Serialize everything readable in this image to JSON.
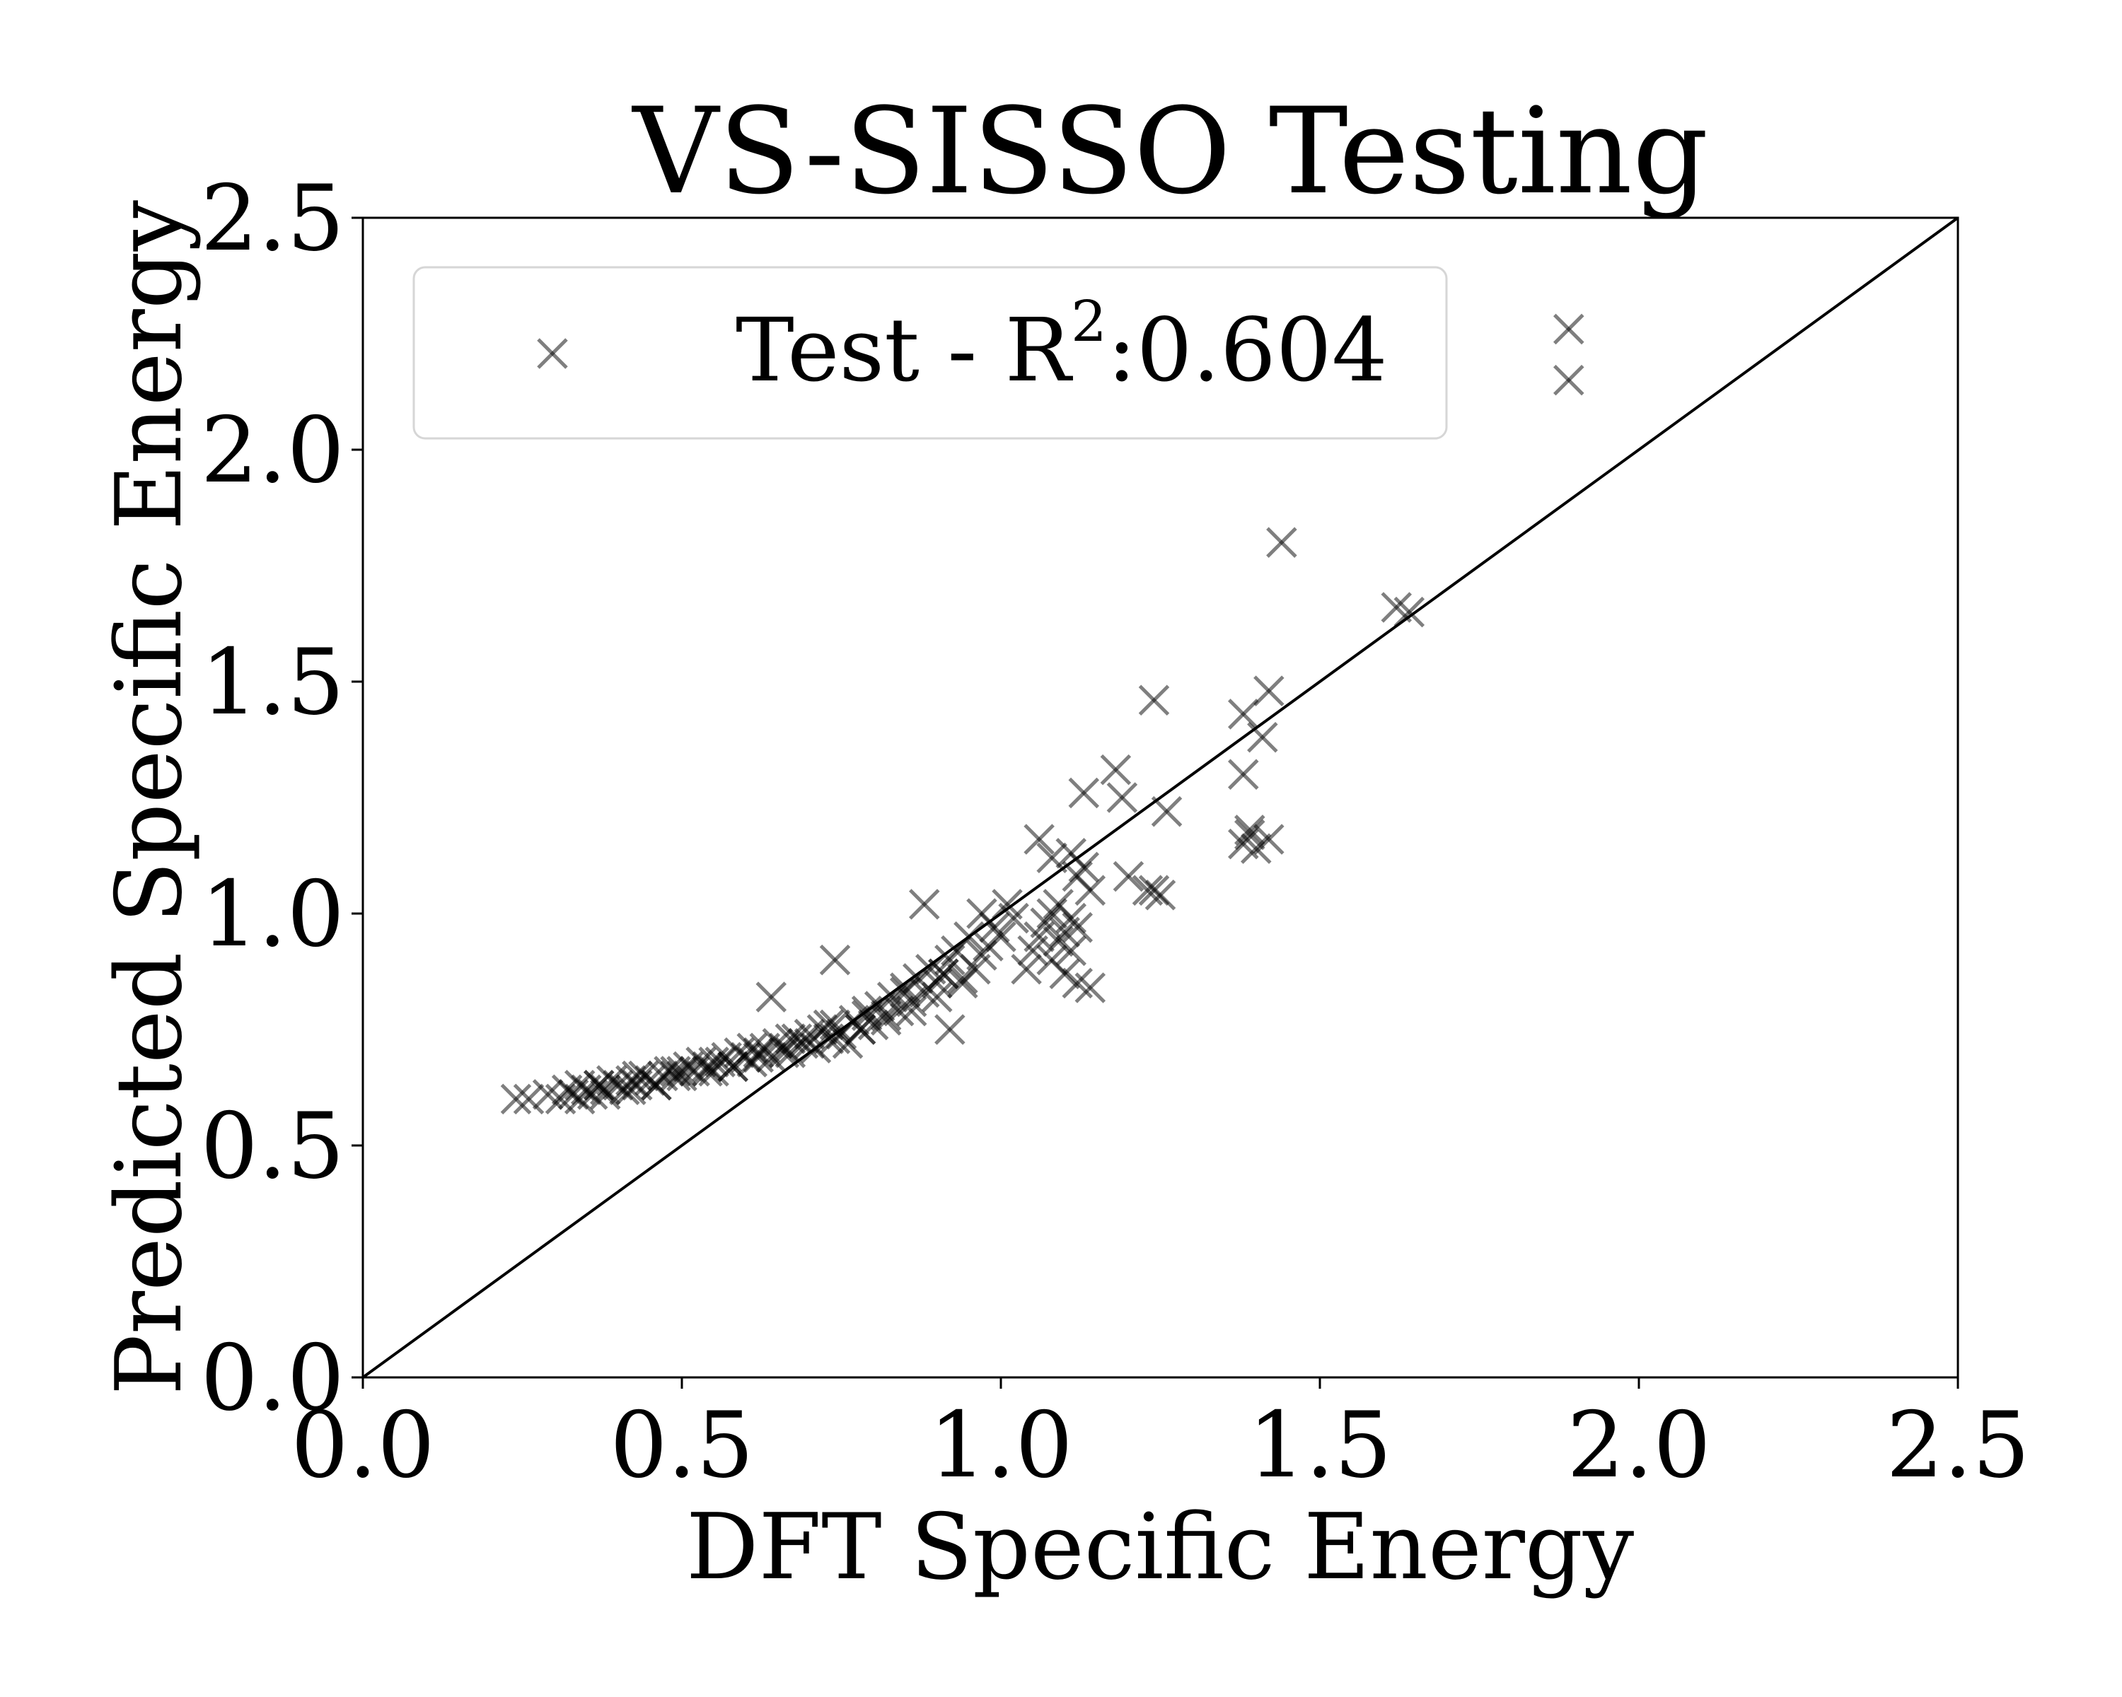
{
  "chart_data": {
    "type": "scatter",
    "title": "VS-SISSO Testing",
    "xlabel": "DFT Specific Energy",
    "ylabel": "Predicted Specific Energy",
    "xlim": [
      0.0,
      2.5
    ],
    "ylim": [
      0.0,
      2.5
    ],
    "xticks": [
      "0.0",
      "0.5",
      "1.0",
      "1.5",
      "2.0",
      "2.5"
    ],
    "yticks": [
      "0.0",
      "0.5",
      "1.0",
      "1.5",
      "2.0",
      "2.5"
    ],
    "grid": false,
    "legend": {
      "placement": "top-left",
      "prefix": "Test - R",
      "superscript": "2",
      "suffix": ":0.604"
    },
    "reference_line": {
      "x": [
        0.0,
        2.5
      ],
      "y": [
        0.0,
        2.5
      ],
      "color": "#000000"
    },
    "marker": {
      "symbol": "x",
      "color": "#000000",
      "alpha": 0.5
    },
    "series": [
      {
        "name": "Test",
        "x": [
          0.24,
          0.26,
          0.29,
          0.31,
          0.32,
          0.33,
          0.34,
          0.35,
          0.36,
          0.37,
          0.38,
          0.39,
          0.4,
          0.41,
          0.42,
          0.43,
          0.44,
          0.45,
          0.46,
          0.47,
          0.48,
          0.49,
          0.5,
          0.51,
          0.52,
          0.53,
          0.54,
          0.55,
          0.56,
          0.57,
          0.58,
          0.59,
          0.6,
          0.61,
          0.62,
          0.63,
          0.64,
          0.65,
          0.66,
          0.67,
          0.68,
          0.69,
          0.7,
          0.71,
          0.72,
          0.73,
          0.74,
          0.75,
          0.76,
          0.77,
          0.78,
          0.79,
          0.8,
          0.81,
          0.82,
          0.83,
          0.84,
          0.85,
          0.86,
          0.87,
          0.88,
          0.89,
          0.9,
          0.91,
          0.92,
          0.93,
          0.94,
          0.95,
          0.96,
          0.97,
          0.98,
          0.99,
          1.0,
          1.01,
          1.02,
          0.34,
          0.38,
          0.42,
          0.46,
          0.5,
          0.54,
          0.58,
          0.62,
          0.66,
          0.7,
          0.74,
          0.78,
          0.82,
          0.86,
          0.9,
          0.94,
          0.37,
          0.43,
          0.49,
          0.55,
          0.61,
          0.67,
          0.73,
          0.79,
          0.85,
          0.91,
          0.97,
          0.64,
          0.74,
          0.88,
          0.92,
          1.04,
          1.05,
          1.06,
          1.07,
          1.08,
          1.09,
          1.1,
          1.11,
          1.12,
          1.08,
          1.12,
          1.14,
          1.06,
          1.11,
          1.13,
          1.08,
          1.1,
          1.12,
          1.09,
          1.11,
          1.14,
          1.18,
          1.19,
          1.2,
          1.23,
          1.24,
          1.25,
          1.24,
          1.26,
          1.13,
          1.38,
          1.38,
          1.38,
          1.39,
          1.4,
          1.41,
          1.42,
          1.42,
          1.44,
          1.39,
          1.62,
          1.64,
          1.89,
          1.89
        ],
        "y": [
          0.6,
          0.6,
          0.61,
          0.6,
          0.62,
          0.61,
          0.63,
          0.62,
          0.61,
          0.63,
          0.62,
          0.64,
          0.63,
          0.62,
          0.64,
          0.63,
          0.65,
          0.64,
          0.63,
          0.65,
          0.66,
          0.65,
          0.66,
          0.67,
          0.66,
          0.68,
          0.67,
          0.66,
          0.68,
          0.69,
          0.67,
          0.7,
          0.69,
          0.68,
          0.7,
          0.71,
          0.69,
          0.72,
          0.71,
          0.7,
          0.73,
          0.72,
          0.74,
          0.71,
          0.75,
          0.73,
          0.76,
          0.74,
          0.72,
          0.77,
          0.75,
          0.78,
          0.76,
          0.8,
          0.78,
          0.82,
          0.79,
          0.84,
          0.81,
          0.86,
          0.83,
          0.88,
          0.85,
          0.87,
          0.9,
          0.92,
          0.86,
          0.95,
          0.88,
          1.0,
          0.93,
          0.97,
          0.95,
          1.02,
          0.99,
          0.6,
          0.61,
          0.62,
          0.63,
          0.65,
          0.66,
          0.67,
          0.69,
          0.7,
          0.72,
          0.73,
          0.75,
          0.77,
          0.79,
          0.82,
          0.85,
          0.63,
          0.65,
          0.66,
          0.68,
          0.71,
          0.73,
          0.76,
          0.79,
          0.83,
          0.87,
          0.91,
          0.82,
          0.9,
          1.02,
          0.75,
          0.88,
          0.92,
          0.95,
          0.98,
          1.0,
          1.02,
          0.96,
          0.92,
          0.97,
          1.12,
          1.08,
          1.05,
          1.16,
          1.13,
          1.1,
          0.9,
          0.87,
          0.85,
          0.94,
          0.99,
          0.84,
          1.31,
          1.25,
          1.08,
          1.05,
          1.46,
          1.04,
          1.05,
          1.22,
          1.26,
          1.43,
          1.3,
          1.15,
          1.17,
          1.14,
          1.38,
          1.16,
          1.48,
          1.8,
          1.18,
          1.66,
          1.65,
          2.26,
          2.15
        ]
      }
    ]
  }
}
